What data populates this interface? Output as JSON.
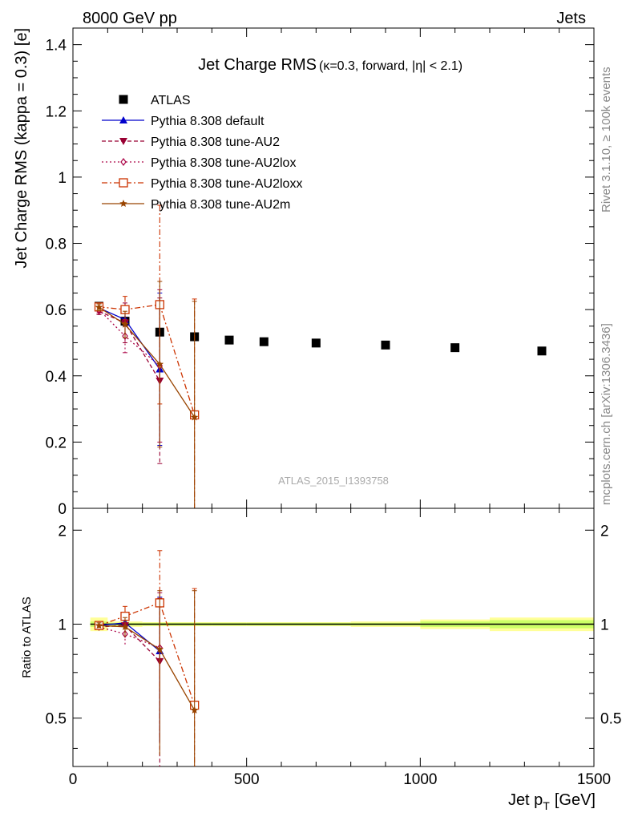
{
  "header": {
    "energy_label": "8000 GeV pp",
    "process_label": "Jets",
    "rivet_label": "Rivet 3.1.10, ≥ 100k events",
    "mcplots_label": "mcplots.cern.ch [arXiv:1306.3436]",
    "analysis_label": "ATLAS_2015_I1393758"
  },
  "chart_data": [
    {
      "type": "scatter",
      "title": "Jet Charge RMS",
      "subtitle": "(κ=0.3, forward, |η| < 2.1)",
      "xlabel": "Jet p",
      "xlabel_sub": "T",
      "xlabel_unit": "[GeV]",
      "ylabel": "Jet Charge RMS (kappa = 0.3) [e]",
      "xlim": [
        0,
        1500
      ],
      "ylim": [
        0,
        1.45
      ],
      "x_ticks": [
        "0",
        "500",
        "1000",
        "1500"
      ],
      "y_ticks": [
        "0",
        "0.2",
        "0.4",
        "0.6",
        "0.8",
        "1",
        "1.2",
        "1.4"
      ],
      "legend_position": "top-left",
      "series": [
        {
          "name": "ATLAS",
          "color": "#000000",
          "marker": "square-filled",
          "line": "none",
          "x": [
            75,
            150,
            250,
            350,
            450,
            550,
            700,
            900,
            1100,
            1350
          ],
          "y": [
            0.61,
            0.565,
            0.532,
            0.518,
            0.508,
            0.503,
            0.499,
            0.493,
            0.485,
            0.475
          ],
          "xerr": [
            25,
            50,
            50,
            50,
            50,
            50,
            100,
            100,
            100,
            150
          ]
        },
        {
          "name": "Pythia 8.308 default",
          "color": "#0000cc",
          "marker": "triangle-up",
          "line": "solid",
          "x": [
            75,
            150,
            250
          ],
          "y": [
            0.605,
            0.57,
            0.42
          ],
          "yerr": [
            0.01,
            0.02,
            0.23
          ]
        },
        {
          "name": "Pythia 8.308 tune-AU2",
          "color": "#990033",
          "marker": "triangle-down",
          "line": "dashed",
          "x": [
            75,
            150,
            250
          ],
          "y": [
            0.595,
            0.56,
            0.385
          ],
          "yerr": [
            0.01,
            0.06,
            0.25
          ]
        },
        {
          "name": "Pythia 8.308 tune-AU2lox",
          "color": "#aa0044",
          "marker": "diamond-open",
          "line": "dotted",
          "x": [
            75,
            150,
            250
          ],
          "y": [
            0.6,
            0.52,
            0.43
          ],
          "yerr": [
            0.01,
            0.05,
            0.23
          ]
        },
        {
          "name": "Pythia 8.308 tune-AU2loxx",
          "color": "#cc3300",
          "marker": "square-open",
          "line": "dashdot",
          "x": [
            75,
            150,
            250,
            350
          ],
          "y": [
            0.608,
            0.6,
            0.615,
            0.282
          ],
          "yerr": [
            0.01,
            0.04,
            0.3,
            0.35
          ]
        },
        {
          "name": "Pythia 8.308 tune-AU2m",
          "color": "#994400",
          "marker": "star",
          "line": "solid",
          "x": [
            75,
            150,
            250,
            350
          ],
          "y": [
            0.607,
            0.555,
            0.435,
            0.275
          ],
          "yerr": [
            0.01,
            0.04,
            0.25,
            0.35
          ]
        }
      ]
    },
    {
      "type": "scatter",
      "title": "",
      "ylabel": "Ratio to ATLAS",
      "xlim": [
        0,
        1500
      ],
      "ylim": [
        0.35,
        2.35
      ],
      "y_scale": "log",
      "y_ticks": [
        "0.5",
        "1",
        "2"
      ],
      "reference_band": {
        "x_edges": [
          50,
          100,
          200,
          300,
          400,
          500,
          600,
          800,
          1000,
          1200,
          1500
        ],
        "inner": [
          0.02,
          0.01,
          0.01,
          0.01,
          0.01,
          0.01,
          0.01,
          0.01,
          0.02,
          0.03
        ],
        "outer": [
          0.05,
          0.02,
          0.015,
          0.015,
          0.015,
          0.015,
          0.015,
          0.02,
          0.035,
          0.05
        ],
        "inner_color": "#ccff66",
        "outer_color": "#ffff99"
      },
      "series": [
        {
          "name": "Pythia 8.308 default",
          "x": [
            75,
            150,
            250
          ],
          "y": [
            0.99,
            1.01,
            0.82
          ],
          "yerr": [
            0.02,
            0.03,
            0.4
          ]
        },
        {
          "name": "Pythia 8.308 tune-AU2",
          "x": [
            75,
            150,
            250
          ],
          "y": [
            0.98,
            0.99,
            0.76
          ],
          "yerr": [
            0.02,
            0.08,
            0.45
          ]
        },
        {
          "name": "Pythia 8.308 tune-AU2lox",
          "x": [
            75,
            150,
            250
          ],
          "y": [
            0.98,
            0.93,
            0.84
          ],
          "yerr": [
            0.02,
            0.08,
            0.42
          ]
        },
        {
          "name": "Pythia 8.308 tune-AU2loxx",
          "x": [
            75,
            150,
            250,
            350
          ],
          "y": [
            0.99,
            1.06,
            1.17,
            0.55
          ],
          "yerr": [
            0.02,
            0.08,
            0.55,
            0.75
          ]
        },
        {
          "name": "Pythia 8.308 tune-AU2m",
          "x": [
            75,
            150,
            250,
            350
          ],
          "y": [
            0.99,
            0.98,
            0.83,
            0.53
          ],
          "yerr": [
            0.02,
            0.07,
            0.45,
            0.75
          ]
        }
      ]
    }
  ]
}
